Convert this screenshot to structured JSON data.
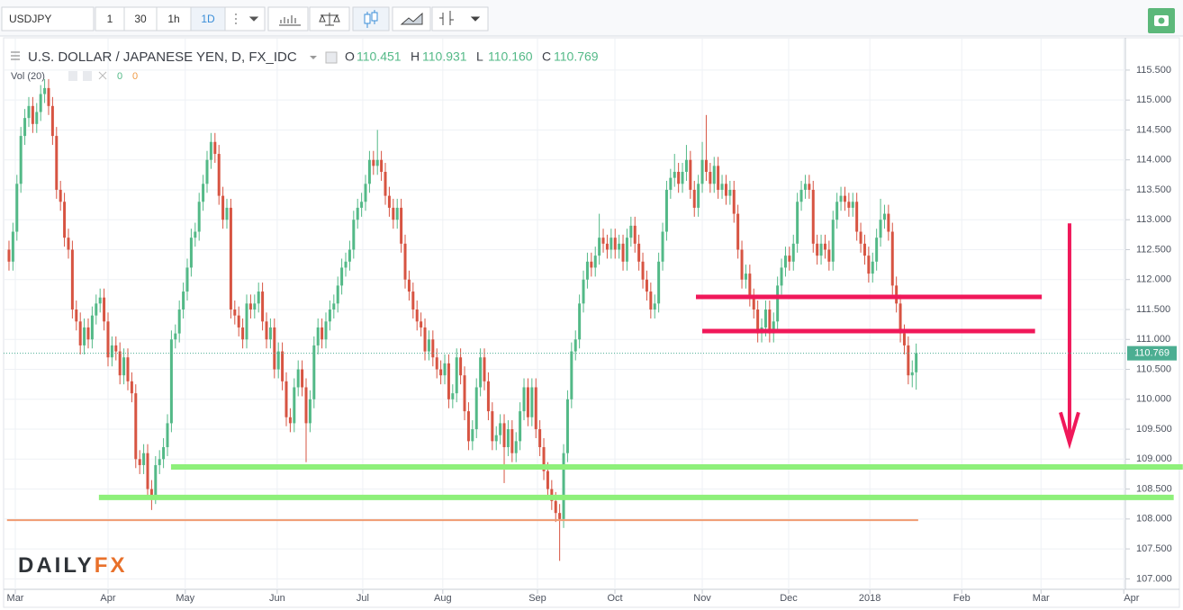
{
  "chart_data": {
    "type": "candlestick",
    "symbol": "USDJPY",
    "intervals": [
      "1",
      "30",
      "1h",
      "1D"
    ],
    "title": "U.S. DOLLAR / JAPANESE YEN, D, FX_IDC",
    "ohlc_header": [
      {
        "key": "O",
        "value": "110.451"
      },
      {
        "key": "H",
        "value": "110.931"
      },
      {
        "key": "L",
        "value": "110.160"
      },
      {
        "key": "C",
        "value": "110.769"
      }
    ],
    "volume_header": {
      "label": "Vol (20)",
      "values": [
        "0",
        "0"
      ]
    },
    "logo": [
      "DAILY",
      "FX"
    ],
    "up_color": "#53b987",
    "down_color": "#d75442",
    "open": [
      112.5,
      112.3,
      112.8,
      113.6,
      114.4,
      114.7,
      114.9,
      114.6,
      114.8,
      115.1,
      115.2,
      114.9,
      114.4,
      113.5,
      113.3,
      112.7,
      112.5,
      111.5,
      111.3,
      110.9,
      111.2,
      111.0,
      111.4,
      111.6,
      111.7,
      111.3,
      110.7,
      110.9,
      110.8,
      110.4,
      110.7,
      110.3,
      110.1,
      109.0,
      108.9,
      109.1,
      108.5,
      108.4,
      108.9,
      109.0,
      109.2,
      109.6,
      111.0,
      111.1,
      111.5,
      111.8,
      112.2,
      112.7,
      112.8,
      113.3,
      113.6,
      114.0,
      114.3,
      114.1,
      113.4,
      113.0,
      113.2,
      111.5,
      111.4,
      111.2,
      111.0,
      111.6,
      111.5,
      111.6,
      111.8,
      111.3,
      111.0,
      111.2,
      110.5,
      110.8,
      110.3,
      109.7,
      109.6,
      110.2,
      110.5,
      110.2,
      109.6,
      110.0,
      110.9,
      111.2,
      111.0,
      111.3,
      111.5,
      111.6,
      111.9,
      112.2,
      112.3,
      112.5,
      113.0,
      113.2,
      113.3,
      113.6,
      114.0,
      113.9,
      114.0,
      113.8,
      113.4,
      113.2,
      113.0,
      113.2,
      112.6,
      112.0,
      111.8,
      111.5,
      111.3,
      111.2,
      110.8,
      111.0,
      110.7,
      110.5,
      110.4,
      110.6,
      110.0,
      110.1,
      110.7,
      110.4,
      109.8,
      109.3,
      109.5,
      110.2,
      110.7,
      110.3,
      109.8,
      109.3,
      109.4,
      109.6,
      109.2,
      109.5,
      109.1,
      109.3,
      109.8,
      110.2,
      109.7,
      110.2,
      109.5,
      109.2,
      108.8,
      108.5,
      108.3,
      108.1,
      108.0,
      109.1,
      110.0,
      110.8,
      111.0,
      111.6,
      112.0,
      112.3,
      112.2,
      112.4,
      112.7,
      112.6,
      112.5,
      112.7,
      112.5,
      112.6,
      112.3,
      112.7,
      112.9,
      112.6,
      112.3,
      112.0,
      111.8,
      111.5,
      111.6,
      112.3,
      112.8,
      113.5,
      113.7,
      113.8,
      113.6,
      113.8,
      114.0,
      113.5,
      113.2,
      113.6,
      114.0,
      113.8,
      113.6,
      113.9,
      113.5,
      113.6,
      113.4,
      113.5,
      113.1,
      112.5,
      112.0,
      112.1,
      111.7,
      111.5,
      111.1,
      111.2,
      111.5,
      111.1,
      111.3,
      111.9,
      112.2,
      112.4,
      112.3,
      112.6,
      113.3,
      113.5,
      113.6,
      113.5,
      112.6,
      112.4,
      112.6,
      112.5,
      112.3,
      113.0,
      113.3,
      113.4,
      113.3,
      113.2,
      113.3,
      112.8,
      112.6,
      112.4,
      112.1,
      112.3,
      112.7,
      113.0,
      113.1,
      112.8,
      111.9,
      111.6,
      111.1,
      110.9,
      110.4,
      110.451
    ],
    "high": [
      112.65,
      112.95,
      113.75,
      114.55,
      114.85,
      115.05,
      115.05,
      114.95,
      115.25,
      115.35,
      115.35,
      115.05,
      114.55,
      113.65,
      113.45,
      112.85,
      112.65,
      111.65,
      111.45,
      111.35,
      111.35,
      111.55,
      111.75,
      111.85,
      111.85,
      111.45,
      111.05,
      111.05,
      110.95,
      110.85,
      110.85,
      110.45,
      110.25,
      109.15,
      109.25,
      109.25,
      108.65,
      109.05,
      109.15,
      109.35,
      109.75,
      111.15,
      111.25,
      111.65,
      111.95,
      112.35,
      112.85,
      112.95,
      113.45,
      113.75,
      114.15,
      114.45,
      114.45,
      114.25,
      113.55,
      113.35,
      113.35,
      111.65,
      111.55,
      111.35,
      111.75,
      111.75,
      111.75,
      111.95,
      111.95,
      111.45,
      111.35,
      111.35,
      110.95,
      110.95,
      110.45,
      109.85,
      110.35,
      110.65,
      110.65,
      110.35,
      110.15,
      111.05,
      111.35,
      111.35,
      111.45,
      111.65,
      111.75,
      112.05,
      112.35,
      112.45,
      112.65,
      113.15,
      113.35,
      113.45,
      113.75,
      114.15,
      114.15,
      114.5,
      114.15,
      113.95,
      113.55,
      113.35,
      113.35,
      113.35,
      112.75,
      112.15,
      111.95,
      111.65,
      111.45,
      111.35,
      111.15,
      111.15,
      110.85,
      110.65,
      110.75,
      110.75,
      110.25,
      110.85,
      110.85,
      110.55,
      109.95,
      109.65,
      110.35,
      110.85,
      110.85,
      110.45,
      109.95,
      109.55,
      109.75,
      109.75,
      109.65,
      109.65,
      109.45,
      109.95,
      110.35,
      110.35,
      110.35,
      110.35,
      109.65,
      109.35,
      108.95,
      108.65,
      108.45,
      108.25,
      109.25,
      110.15,
      110.95,
      111.15,
      111.75,
      112.15,
      112.45,
      112.45,
      112.55,
      113.1,
      112.85,
      112.75,
      112.85,
      112.85,
      112.75,
      112.75,
      112.85,
      113.05,
      113.05,
      112.75,
      112.45,
      112.15,
      111.95,
      111.75,
      112.45,
      112.95,
      113.65,
      113.85,
      114.1,
      113.95,
      113.95,
      114.25,
      114.15,
      113.65,
      113.75,
      114.3,
      114.75,
      113.95,
      114.05,
      114.05,
      113.75,
      113.75,
      113.65,
      113.65,
      113.25,
      112.65,
      112.25,
      112.25,
      111.85,
      111.65,
      111.35,
      111.65,
      111.65,
      111.45,
      112.05,
      112.35,
      112.55,
      112.55,
      112.75,
      113.45,
      113.65,
      113.75,
      113.75,
      113.65,
      112.75,
      112.75,
      112.75,
      112.65,
      113.15,
      113.45,
      113.55,
      113.55,
      113.45,
      113.45,
      113.45,
      112.95,
      112.75,
      112.55,
      112.45,
      112.85,
      113.35,
      113.25,
      113.25,
      112.95,
      112.05,
      111.75,
      111.25,
      111.05,
      110.65,
      110.931
    ],
    "low": [
      112.15,
      112.15,
      112.65,
      113.45,
      114.25,
      114.55,
      114.45,
      114.45,
      114.65,
      114.95,
      114.75,
      114.25,
      113.35,
      113.15,
      112.55,
      112.35,
      111.35,
      111.15,
      110.75,
      110.75,
      110.85,
      110.85,
      111.25,
      111.45,
      111.15,
      110.55,
      110.55,
      110.65,
      110.25,
      110.25,
      110.15,
      109.95,
      108.85,
      108.75,
      108.75,
      108.35,
      108.15,
      108.25,
      108.75,
      108.85,
      109.05,
      109.45,
      110.85,
      110.95,
      111.35,
      111.65,
      112.05,
      112.55,
      112.65,
      113.15,
      113.45,
      113.85,
      113.95,
      113.25,
      112.85,
      112.85,
      111.35,
      111.25,
      111.05,
      110.85,
      110.85,
      111.35,
      111.35,
      111.45,
      111.15,
      110.85,
      110.85,
      110.35,
      110.35,
      110.15,
      109.55,
      109.45,
      109.45,
      110.05,
      110.05,
      108.95,
      109.45,
      109.85,
      110.75,
      110.85,
      110.85,
      111.15,
      111.35,
      111.45,
      111.75,
      112.05,
      112.15,
      112.35,
      112.85,
      113.05,
      113.15,
      113.45,
      113.75,
      113.75,
      113.65,
      113.25,
      113.05,
      112.85,
      112.85,
      112.45,
      111.85,
      111.65,
      111.35,
      111.15,
      111.05,
      110.65,
      110.65,
      110.55,
      110.35,
      110.25,
      110.25,
      109.85,
      109.85,
      109.95,
      110.25,
      109.65,
      109.15,
      109.15,
      109.35,
      110.05,
      110.15,
      109.65,
      109.15,
      109.15,
      109.25,
      108.6,
      109.05,
      108.95,
      108.95,
      109.15,
      109.65,
      109.55,
      109.55,
      109.35,
      109.05,
      108.65,
      108.35,
      108.15,
      107.95,
      107.3,
      107.85,
      108.95,
      109.85,
      110.65,
      110.85,
      111.45,
      111.85,
      112.05,
      112.05,
      112.25,
      112.45,
      112.35,
      112.35,
      112.35,
      112.35,
      112.15,
      112.15,
      112.55,
      112.45,
      112.15,
      111.85,
      111.65,
      111.35,
      111.35,
      111.45,
      112.15,
      112.65,
      113.35,
      113.55,
      113.45,
      113.45,
      113.65,
      113.35,
      113.05,
      113.05,
      113.45,
      113.65,
      113.45,
      113.45,
      113.35,
      113.35,
      113.25,
      113.25,
      112.95,
      112.35,
      111.85,
      111.85,
      111.55,
      111.35,
      110.95,
      110.95,
      111.05,
      110.95,
      110.95,
      111.15,
      111.75,
      112.05,
      112.15,
      112.15,
      112.45,
      113.15,
      113.35,
      113.35,
      112.45,
      112.25,
      112.25,
      112.35,
      112.15,
      112.15,
      112.85,
      113.15,
      113.15,
      113.05,
      113.05,
      112.65,
      112.45,
      112.25,
      111.95,
      111.95,
      112.15,
      112.55,
      112.85,
      112.65,
      111.75,
      111.45,
      110.95,
      110.75,
      110.25,
      110.2,
      110.16
    ],
    "close": [
      112.3,
      112.8,
      113.6,
      114.4,
      114.7,
      114.9,
      114.6,
      114.8,
      115.1,
      115.2,
      114.9,
      114.4,
      113.5,
      113.3,
      112.7,
      112.5,
      111.5,
      111.3,
      110.9,
      111.2,
      111.0,
      111.4,
      111.6,
      111.7,
      111.3,
      110.7,
      110.9,
      110.8,
      110.4,
      110.7,
      110.3,
      110.1,
      109.0,
      108.9,
      109.1,
      108.5,
      108.4,
      108.9,
      109.0,
      109.2,
      109.6,
      111.0,
      111.1,
      111.5,
      111.8,
      112.2,
      112.7,
      112.8,
      113.3,
      113.6,
      114.0,
      114.3,
      114.1,
      113.4,
      113.0,
      113.2,
      111.5,
      111.4,
      111.2,
      111.0,
      111.6,
      111.5,
      111.6,
      111.8,
      111.3,
      111.0,
      111.2,
      110.5,
      110.8,
      110.3,
      109.7,
      109.6,
      110.2,
      110.5,
      110.2,
      109.6,
      110.0,
      110.9,
      111.2,
      111.0,
      111.3,
      111.5,
      111.6,
      111.9,
      112.2,
      112.3,
      112.5,
      113.0,
      113.2,
      113.3,
      113.6,
      114.0,
      113.9,
      114.0,
      113.8,
      113.4,
      113.2,
      113.0,
      113.2,
      112.6,
      112.0,
      111.8,
      111.5,
      111.3,
      111.2,
      110.8,
      111.0,
      110.7,
      110.5,
      110.4,
      110.6,
      110.0,
      110.1,
      110.7,
      110.4,
      109.8,
      109.3,
      109.5,
      110.2,
      110.7,
      110.3,
      109.8,
      109.3,
      109.4,
      109.6,
      109.2,
      109.5,
      109.1,
      109.3,
      109.8,
      110.2,
      109.7,
      110.2,
      109.5,
      109.2,
      108.8,
      108.5,
      108.3,
      108.1,
      108.0,
      109.1,
      110.0,
      110.8,
      111.0,
      111.6,
      112.0,
      112.3,
      112.2,
      112.4,
      112.7,
      112.6,
      112.5,
      112.7,
      112.5,
      112.6,
      112.3,
      112.7,
      112.9,
      112.6,
      112.3,
      112.0,
      111.8,
      111.5,
      111.6,
      112.3,
      112.8,
      113.5,
      113.7,
      113.8,
      113.6,
      113.8,
      114.0,
      113.5,
      113.2,
      113.6,
      114.0,
      113.8,
      113.6,
      113.9,
      113.5,
      113.6,
      113.4,
      113.5,
      113.1,
      112.5,
      112.0,
      112.1,
      111.7,
      111.5,
      111.1,
      111.2,
      111.5,
      111.1,
      111.3,
      111.9,
      112.2,
      112.4,
      112.3,
      112.6,
      113.3,
      113.5,
      113.6,
      113.5,
      112.6,
      112.4,
      112.6,
      112.5,
      112.3,
      113.0,
      113.3,
      113.4,
      113.3,
      113.2,
      113.3,
      112.8,
      112.6,
      112.4,
      112.1,
      112.3,
      112.7,
      113.0,
      113.1,
      112.8,
      111.9,
      111.6,
      111.1,
      110.9,
      110.4,
      110.45,
      110.769
    ],
    "last_price_label": "110.769",
    "last_price_color": "#4cae92",
    "xlim": [
      -0.45,
      281.8
    ],
    "xticks": [
      {
        "value": 1.6,
        "label": "Mar"
      },
      {
        "value": 25,
        "label": "Apr"
      },
      {
        "value": 44.5,
        "label": "May"
      },
      {
        "value": 67.7,
        "label": "Jun"
      },
      {
        "value": 89.3,
        "label": "Jul"
      },
      {
        "value": 109.5,
        "label": "Aug"
      },
      {
        "value": 133.4,
        "label": "Sep"
      },
      {
        "value": 152.95,
        "label": "Oct"
      },
      {
        "value": 175,
        "label": "Nov"
      },
      {
        "value": 196.8,
        "label": "Dec"
      },
      {
        "value": 217.3,
        "label": "2018"
      },
      {
        "value": 240.5,
        "label": "Feb"
      },
      {
        "value": 260.5,
        "label": "Mar"
      },
      {
        "value": 281.4,
        "label": "Apr"
      }
    ],
    "ylim": [
      106.87,
      116.07
    ],
    "yticks": [
      {
        "value": 107,
        "label": "107.000"
      },
      {
        "value": 107.5,
        "label": "107.500"
      },
      {
        "value": 108,
        "label": "108.000"
      },
      {
        "value": 108.5,
        "label": "108.500"
      },
      {
        "value": 109,
        "label": "109.000"
      },
      {
        "value": 109.5,
        "label": "109.500"
      },
      {
        "value": 110,
        "label": "110.000"
      },
      {
        "value": 110.5,
        "label": "110.500"
      },
      {
        "value": 111,
        "label": "111.000"
      },
      {
        "value": 111.5,
        "label": "111.500"
      },
      {
        "value": 112,
        "label": "112.000"
      },
      {
        "value": 112.5,
        "label": "112.500"
      },
      {
        "value": 113,
        "label": "113.000"
      },
      {
        "value": 113.5,
        "label": "113.500"
      },
      {
        "value": 114,
        "label": "114.000"
      },
      {
        "value": 114.5,
        "label": "114.500"
      },
      {
        "value": 115,
        "label": "115.000"
      },
      {
        "value": 115.5,
        "label": "115.500"
      }
    ],
    "grid": true,
    "level_lines": [
      {
        "color": "#f0185a",
        "width": 5,
        "x": [
          173.4,
          260.7
        ],
        "y": 111.71
      },
      {
        "color": "#f0185a",
        "width": 5,
        "x": [
          175,
          259
        ],
        "y": 111.14
      },
      {
        "color": "#8ef07a",
        "width": 6,
        "x": [
          40.9,
          296.3
        ],
        "y": 108.87
      },
      {
        "color": "#8ef07a",
        "width": 6,
        "x": [
          22.7,
          294
        ],
        "y": 108.36
      },
      {
        "color": "#f09a70",
        "width": 2,
        "x": [
          -0.5,
          229.5
        ],
        "y": 107.98
      }
    ],
    "arrow": {
      "color": "#f0185a",
      "x": 267.7,
      "y": [
        112.94,
        109.27
      ]
    }
  }
}
